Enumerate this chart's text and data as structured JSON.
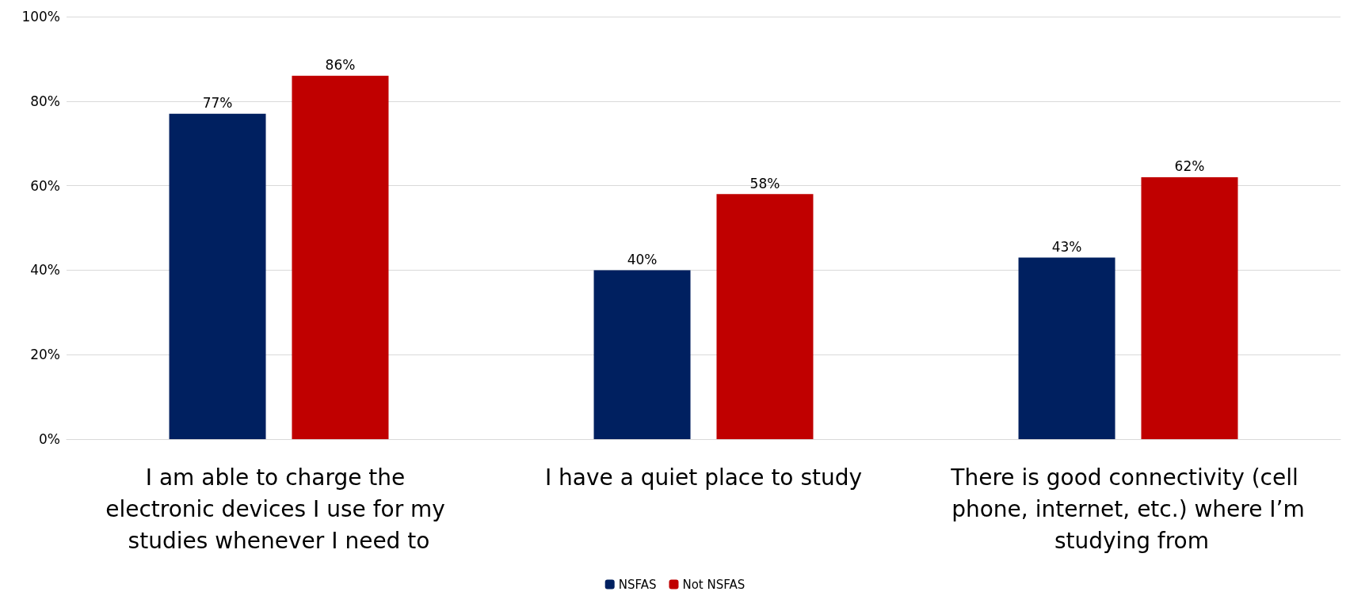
{
  "chart_data": {
    "type": "bar",
    "categories": [
      "I am able to charge the electronic devices I use for my studies whenever I need to",
      "I have a quiet place to study",
      "There is good connectivity (cell phone, internet, etc.) where I’m studying from"
    ],
    "series": [
      {
        "name": "NSFAS",
        "color": "#002060",
        "values": [
          77,
          40,
          43
        ],
        "value_labels": [
          "77%",
          "40%",
          "43%"
        ]
      },
      {
        "name": "Not NSFAS",
        "color": "#c00000",
        "values": [
          86,
          58,
          62
        ],
        "value_labels": [
          "86%",
          "58%",
          "62%"
        ]
      }
    ],
    "ylim": [
      0,
      100
    ],
    "yticks": [
      {
        "value": 0,
        "label": "0%"
      },
      {
        "value": 20,
        "label": "20%"
      },
      {
        "value": 40,
        "label": "40%"
      },
      {
        "value": 60,
        "label": "60%"
      },
      {
        "value": 80,
        "label": "80%"
      },
      {
        "value": 100,
        "label": "100%"
      }
    ],
    "grid": "y",
    "legend": "bottom"
  }
}
